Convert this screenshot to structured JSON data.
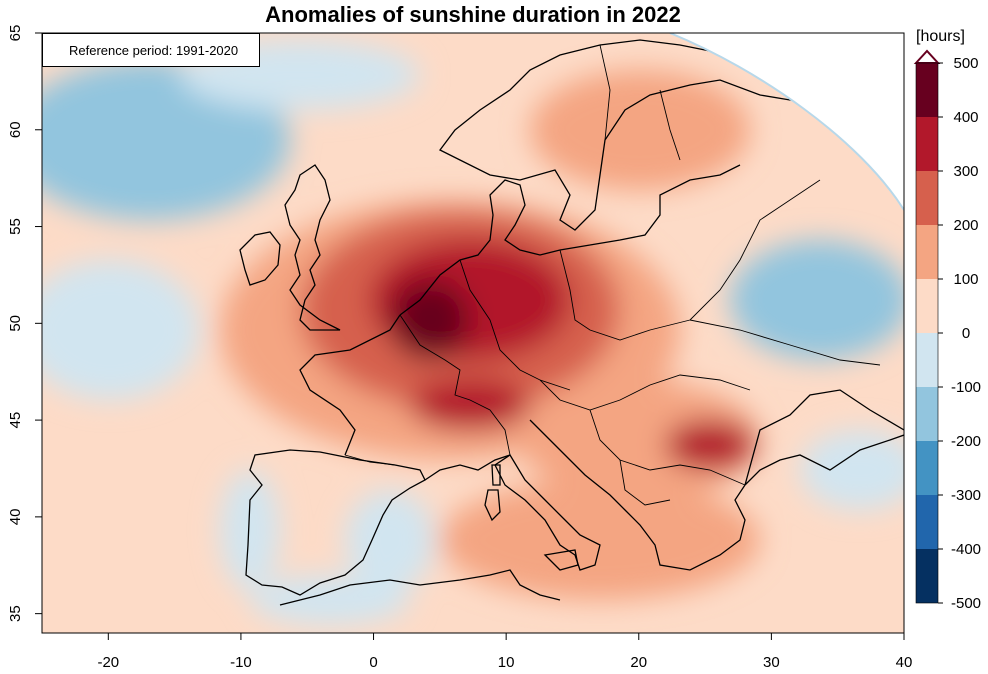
{
  "title": "Anomalies of sunshine duration in 2022",
  "reference_label": "Reference period: 1991-2020",
  "colorbar": {
    "unit": "[hours]",
    "ticks": [
      "500",
      "400",
      "300",
      "200",
      "100",
      "0",
      "-100",
      "-200",
      "-300",
      "-400",
      "-500"
    ],
    "bins": [
      {
        "from": 400,
        "to": 500,
        "color": "#67001f"
      },
      {
        "from": 300,
        "to": 400,
        "color": "#b2182b"
      },
      {
        "from": 200,
        "to": 300,
        "color": "#d6604d"
      },
      {
        "from": 100,
        "to": 200,
        "color": "#f4a582"
      },
      {
        "from": 0,
        "to": 100,
        "color": "#fddbc7"
      },
      {
        "from": -100,
        "to": 0,
        "color": "#d1e5f0"
      },
      {
        "from": -200,
        "to": -100,
        "color": "#92c5de"
      },
      {
        "from": -300,
        "to": -200,
        "color": "#4393c3"
      },
      {
        "from": -400,
        "to": -300,
        "color": "#2166ac"
      },
      {
        "from": -500,
        "to": -400,
        "color": "#053061"
      }
    ]
  },
  "axes": {
    "x_ticks": [
      "-20",
      "-10",
      "0",
      "10",
      "20",
      "30",
      "40"
    ],
    "y_ticks": [
      "35",
      "40",
      "45",
      "50",
      "55",
      "60",
      "65"
    ],
    "xlim": [
      -25,
      40
    ],
    "ylim": [
      34,
      65
    ]
  }
}
